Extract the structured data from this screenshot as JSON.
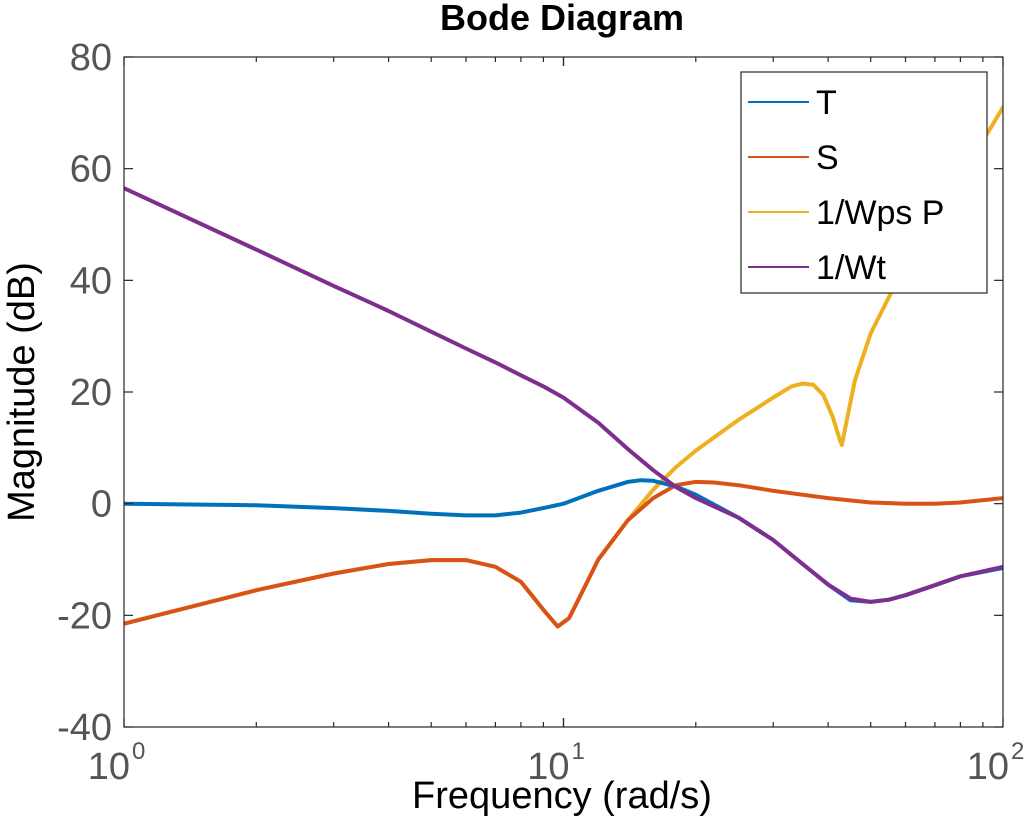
{
  "chart_data": {
    "type": "line",
    "title": "Bode Diagram",
    "xlabel": "Frequency  (rad/s)",
    "ylabel": "Magnitude (dB)",
    "x_scale": "log",
    "xlim": [
      1,
      100
    ],
    "ylim": [
      -40,
      80
    ],
    "yticks": [
      {
        "value": 80,
        "label": "80"
      },
      {
        "value": 60,
        "label": "60"
      },
      {
        "value": 40,
        "label": "40"
      },
      {
        "value": 20,
        "label": "20"
      },
      {
        "value": 0,
        "label": "0"
      },
      {
        "value": -20,
        "label": "-20"
      },
      {
        "value": -40,
        "label": "-40"
      }
    ],
    "xticks": [
      {
        "value": 1,
        "base": "10",
        "exp": "0"
      },
      {
        "value": 10,
        "base": "10",
        "exp": "1"
      },
      {
        "value": 100,
        "base": "10",
        "exp": "2"
      }
    ],
    "grid": false,
    "legend_position": "top-right",
    "series": [
      {
        "name": "T",
        "color": "#0072BD",
        "points": [
          [
            1,
            0
          ],
          [
            2,
            -0.3
          ],
          [
            3,
            -0.8
          ],
          [
            4,
            -1.3
          ],
          [
            5,
            -1.8
          ],
          [
            6,
            -2.1
          ],
          [
            7,
            -2.1
          ],
          [
            8,
            -1.6
          ],
          [
            9,
            -0.8
          ],
          [
            10,
            0
          ],
          [
            12,
            2.3
          ],
          [
            14,
            3.9
          ],
          [
            15,
            4.2
          ],
          [
            16,
            4.1
          ],
          [
            18,
            3.1
          ],
          [
            20,
            1.6
          ],
          [
            25,
            -2.5
          ],
          [
            30,
            -6.5
          ],
          [
            35,
            -10.8
          ],
          [
            40,
            -14.5
          ],
          [
            45,
            -17.3
          ],
          [
            50,
            -17.6
          ],
          [
            55,
            -17.2
          ],
          [
            60,
            -16.4
          ],
          [
            70,
            -14.6
          ],
          [
            80,
            -13.0
          ],
          [
            100,
            -11.5
          ]
        ]
      },
      {
        "name": "S",
        "color": "#D95319",
        "points": [
          [
            1,
            -21.5
          ],
          [
            2,
            -15.5
          ],
          [
            3,
            -12.5
          ],
          [
            4,
            -10.8
          ],
          [
            5,
            -10.1
          ],
          [
            6,
            -10.1
          ],
          [
            7,
            -11.3
          ],
          [
            8,
            -14.0
          ],
          [
            9,
            -19.0
          ],
          [
            9.7,
            -22.0
          ],
          [
            10.3,
            -20.5
          ],
          [
            11,
            -16.0
          ],
          [
            12,
            -10.0
          ],
          [
            14,
            -3.0
          ],
          [
            16,
            1.0
          ],
          [
            18,
            3.3
          ],
          [
            20,
            3.9
          ],
          [
            22,
            3.8
          ],
          [
            25,
            3.3
          ],
          [
            30,
            2.3
          ],
          [
            40,
            1.0
          ],
          [
            50,
            0.2
          ],
          [
            60,
            0
          ],
          [
            70,
            0
          ],
          [
            80,
            0.2
          ],
          [
            100,
            1.0
          ]
        ]
      },
      {
        "name": "1/Wps P",
        "color": "#EDB120",
        "points": [
          [
            1,
            -21.5
          ],
          [
            2,
            -15.5
          ],
          [
            3,
            -12.5
          ],
          [
            4,
            -10.8
          ],
          [
            5,
            -10.1
          ],
          [
            6,
            -10.1
          ],
          [
            7,
            -11.3
          ],
          [
            8,
            -14.0
          ],
          [
            9,
            -19.0
          ],
          [
            9.7,
            -22.0
          ],
          [
            10.3,
            -20.5
          ],
          [
            11,
            -16.0
          ],
          [
            12,
            -10.0
          ],
          [
            14,
            -3.0
          ],
          [
            16,
            2.5
          ],
          [
            18,
            6.5
          ],
          [
            20,
            9.5
          ],
          [
            25,
            15.0
          ],
          [
            30,
            19.0
          ],
          [
            33,
            21.0
          ],
          [
            35,
            21.5
          ],
          [
            37,
            21.3
          ],
          [
            39,
            19.5
          ],
          [
            41,
            15.5
          ],
          [
            42.5,
            11.5
          ],
          [
            43,
            10.5
          ],
          [
            44,
            14.5
          ],
          [
            46,
            22.0
          ],
          [
            50,
            30.5
          ],
          [
            55,
            37.0
          ],
          [
            60,
            42.5
          ],
          [
            70,
            51.0
          ],
          [
            80,
            58.0
          ],
          [
            90,
            65.0
          ],
          [
            100,
            71.0
          ]
        ]
      },
      {
        "name": "1/Wt",
        "color": "#7E2F8E",
        "points": [
          [
            1,
            56.5
          ],
          [
            2,
            45.5
          ],
          [
            3,
            39.0
          ],
          [
            4,
            34.5
          ],
          [
            5,
            30.8
          ],
          [
            6,
            27.8
          ],
          [
            7,
            25.3
          ],
          [
            8,
            23.0
          ],
          [
            9,
            21.0
          ],
          [
            10,
            19.0
          ],
          [
            12,
            14.5
          ],
          [
            14,
            9.8
          ],
          [
            16,
            6.0
          ],
          [
            18,
            3.0
          ],
          [
            20,
            1.0
          ],
          [
            25,
            -2.5
          ],
          [
            30,
            -6.5
          ],
          [
            35,
            -10.8
          ],
          [
            40,
            -14.5
          ],
          [
            45,
            -17.0
          ],
          [
            50,
            -17.6
          ],
          [
            55,
            -17.2
          ],
          [
            60,
            -16.4
          ],
          [
            70,
            -14.6
          ],
          [
            80,
            -13.0
          ],
          [
            100,
            -11.3
          ]
        ]
      }
    ]
  }
}
